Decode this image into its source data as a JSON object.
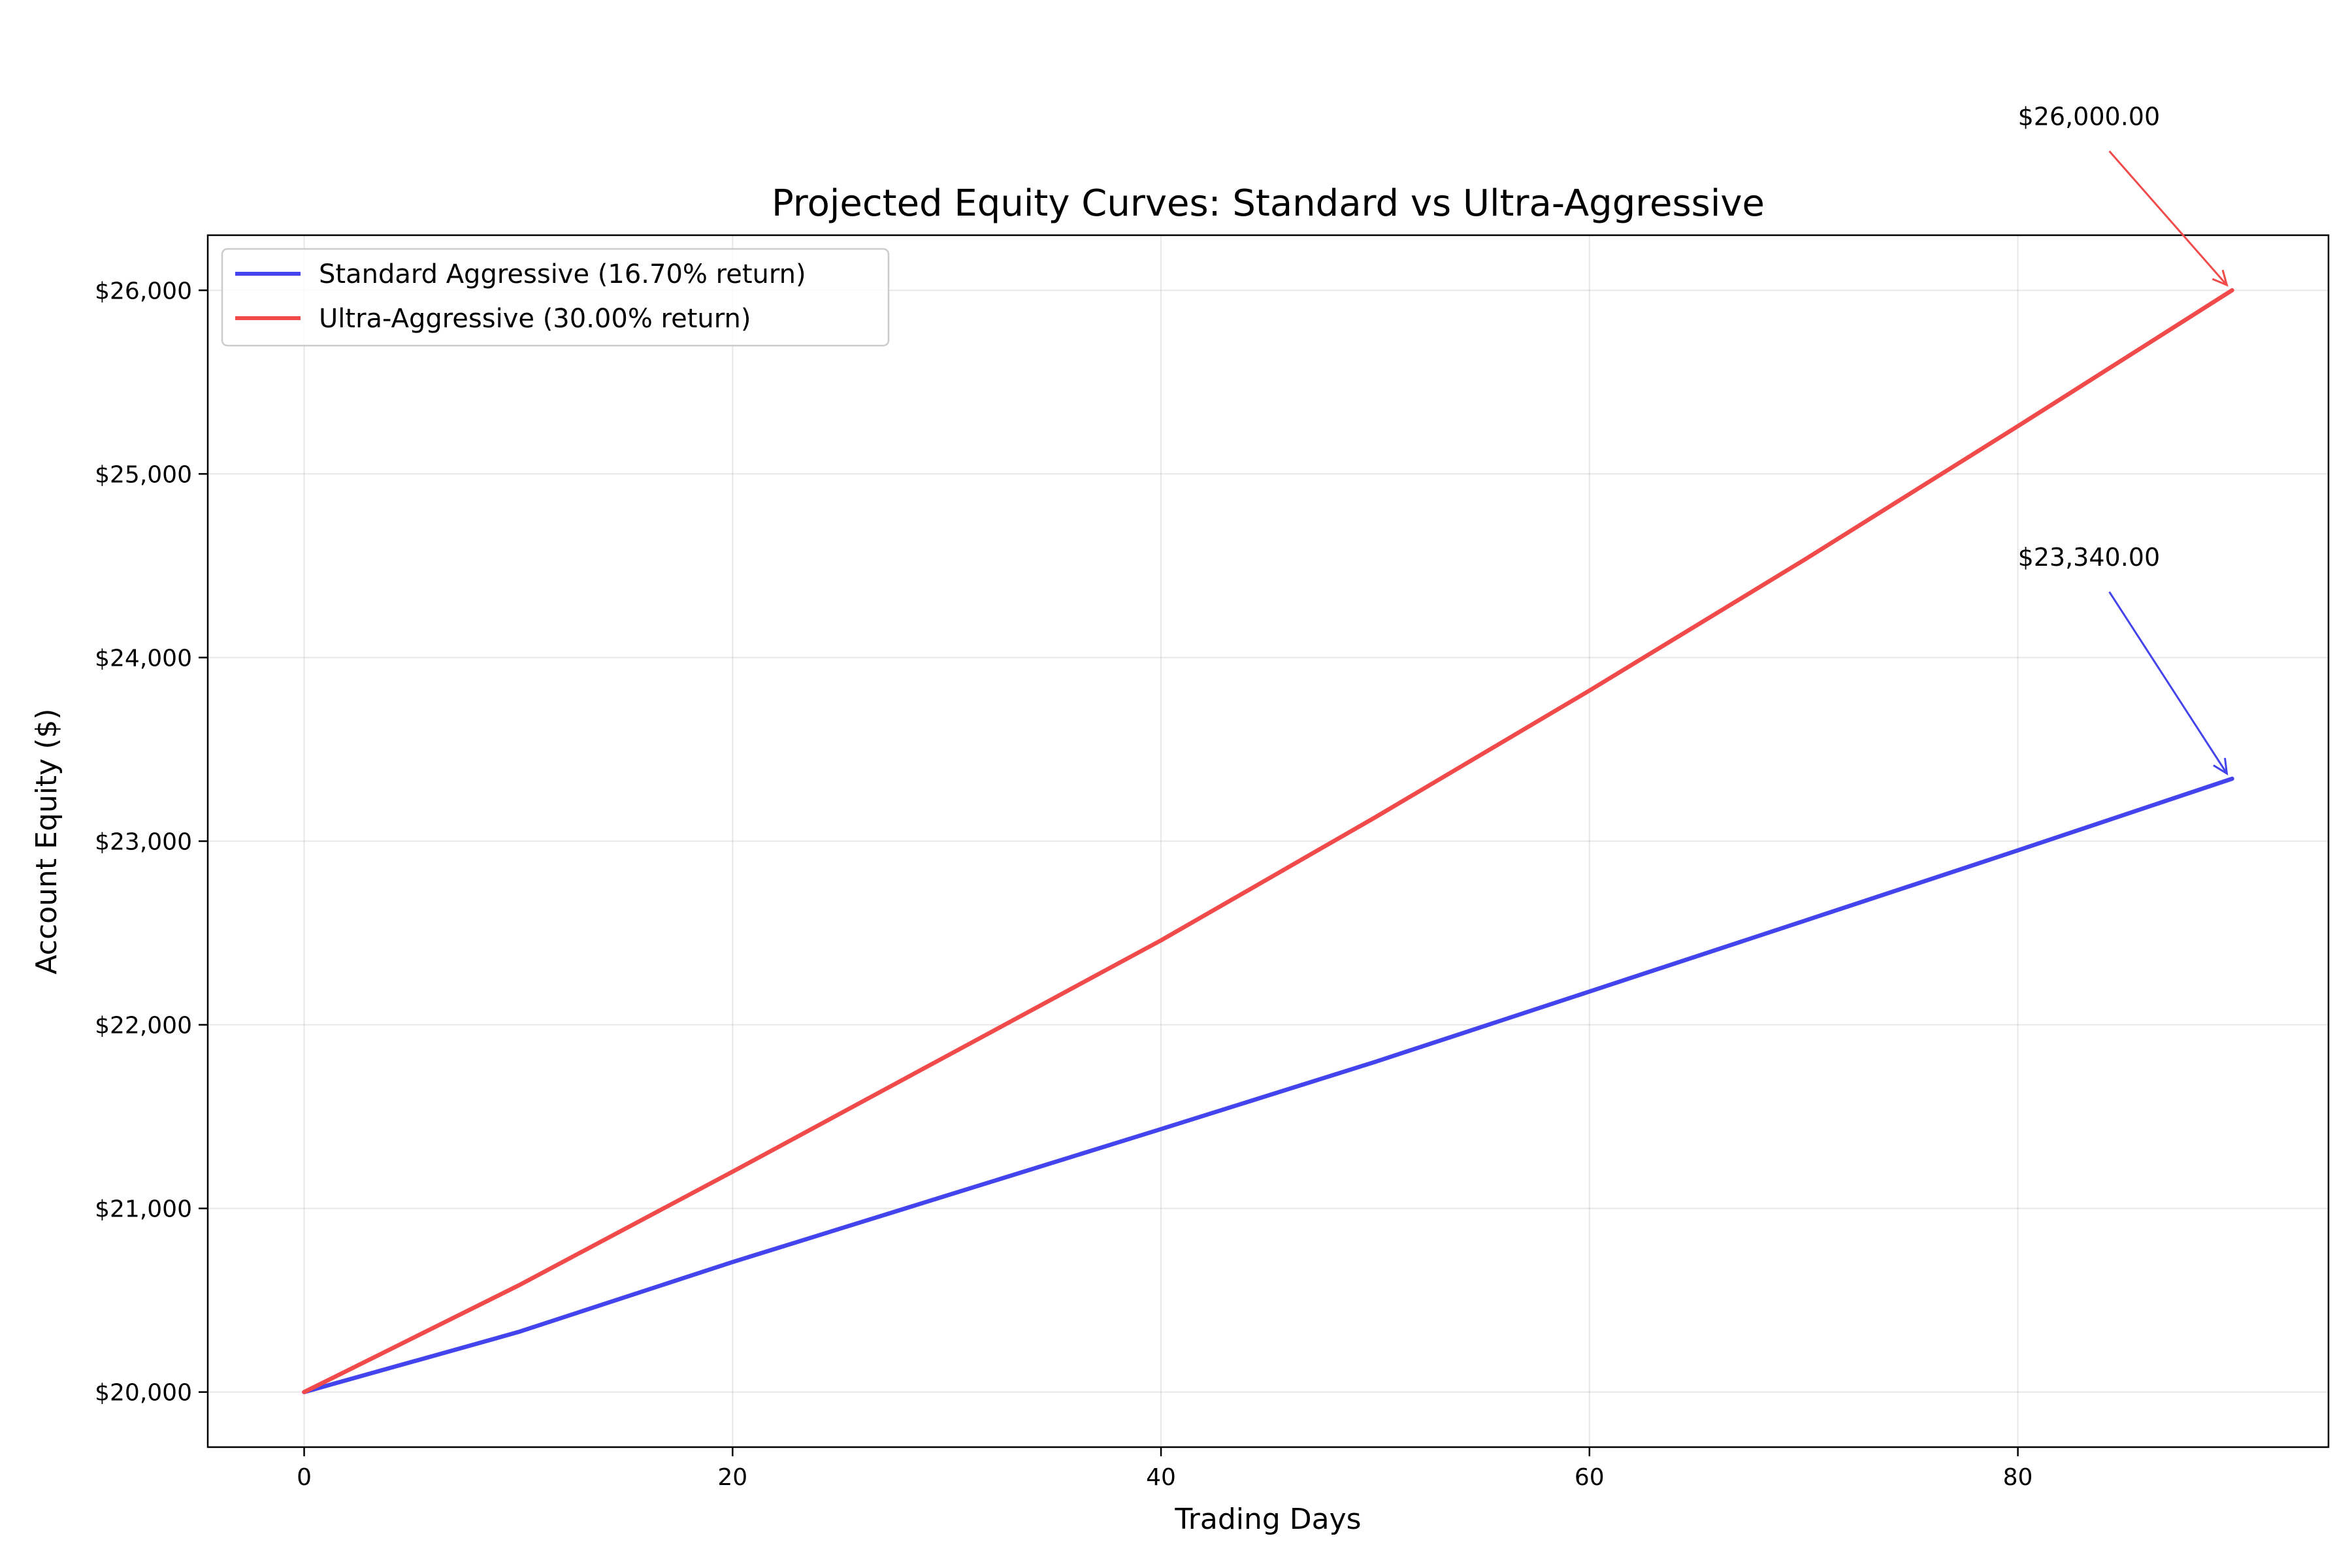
{
  "chart_data": {
    "type": "line",
    "title": "Projected Equity Curves: Standard vs Ultra-Aggressive",
    "xlabel": "Trading Days",
    "ylabel": "Account Equity ($)",
    "xlim": [
      -4.5,
      94.5
    ],
    "ylim": [
      19700,
      26300
    ],
    "xticks": [
      0,
      20,
      40,
      60,
      80
    ],
    "xtick_labels": [
      "0",
      "20",
      "40",
      "60",
      "80"
    ],
    "yticks": [
      20000,
      21000,
      22000,
      23000,
      24000,
      25000,
      26000
    ],
    "ytick_labels": [
      "$20,000",
      "$21,000",
      "$22,000",
      "$23,000",
      "$24,000",
      "$25,000",
      "$26,000"
    ],
    "grid": true,
    "legend_position": "upper-left",
    "series": [
      {
        "name": "Standard Aggressive (16.70% return)",
        "color": "#4444ee",
        "x": [
          0,
          10,
          20,
          30,
          40,
          50,
          60,
          70,
          80,
          90
        ],
        "y": [
          20000,
          20327,
          20708,
          21070,
          21432,
          21798,
          22181,
          22565,
          22950,
          23340
        ]
      },
      {
        "name": "Ultra-Aggressive (30.00% return)",
        "color": "#f04a4a",
        "x": [
          0,
          10,
          20,
          30,
          40,
          50,
          60,
          70,
          80,
          90
        ],
        "y": [
          20000,
          20580,
          21200,
          21830,
          22460,
          23130,
          23820,
          24530,
          25260,
          26000
        ]
      }
    ],
    "annotations": [
      {
        "text": "$26,000.00",
        "x": 90,
        "y": 26000,
        "text_x": 80,
        "text_y": 26900,
        "color": "#f04a4a"
      },
      {
        "text": "$23,340.00",
        "x": 90,
        "y": 23340,
        "text_x": 80,
        "text_y": 24500,
        "color": "#4444ee"
      }
    ]
  }
}
